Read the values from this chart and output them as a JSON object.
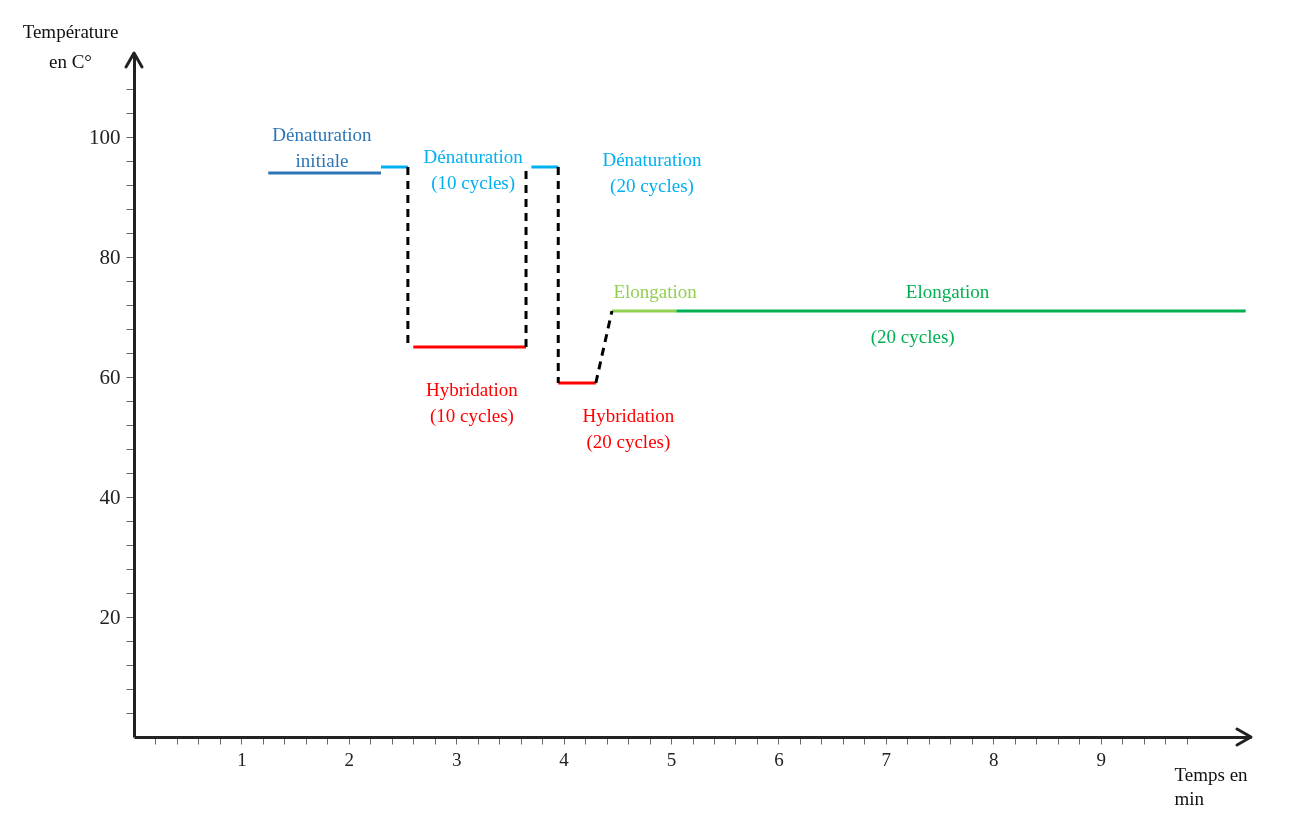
{
  "chart_data": {
    "type": "line",
    "xlabel": "Temps en\nmin",
    "ylabel": "Température\nen C°",
    "xlim": [
      0,
      10.4
    ],
    "ylim": [
      0,
      114
    ],
    "xticks": [
      {
        "value": 0.2,
        "label": null
      },
      {
        "value": 0.4,
        "label": null
      },
      {
        "value": 0.6,
        "label": null
      },
      {
        "value": 0.8,
        "label": null
      },
      1,
      {
        "value": 1.2,
        "label": null
      },
      {
        "value": 1.4,
        "label": null
      },
      {
        "value": 1.6,
        "label": null
      },
      {
        "value": 1.8,
        "label": null
      },
      2,
      {
        "value": 2.2,
        "label": null
      },
      {
        "value": 2.4,
        "label": null
      },
      {
        "value": 2.6,
        "label": null
      },
      {
        "value": 2.8,
        "label": null
      },
      3,
      {
        "value": 3.2,
        "label": null
      },
      {
        "value": 3.4,
        "label": null
      },
      {
        "value": 3.6,
        "label": null
      },
      {
        "value": 3.8,
        "label": null
      },
      4,
      {
        "value": 4.2,
        "label": null
      },
      {
        "value": 4.4,
        "label": null
      },
      {
        "value": 4.6,
        "label": null
      },
      {
        "value": 4.8,
        "label": null
      },
      5,
      {
        "value": 5.2,
        "label": null
      },
      {
        "value": 5.4,
        "label": null
      },
      {
        "value": 5.6,
        "label": null
      },
      {
        "value": 5.8,
        "label": null
      },
      6,
      {
        "value": 6.2,
        "label": null
      },
      {
        "value": 6.4,
        "label": null
      },
      {
        "value": 6.6,
        "label": null
      },
      {
        "value": 6.8,
        "label": null
      },
      7,
      {
        "value": 7.2,
        "label": null
      },
      {
        "value": 7.4,
        "label": null
      },
      {
        "value": 7.6,
        "label": null
      },
      {
        "value": 7.8,
        "label": null
      },
      8,
      {
        "value": 8.2,
        "label": null
      },
      {
        "value": 8.4,
        "label": null
      },
      {
        "value": 8.6,
        "label": null
      },
      {
        "value": 8.8,
        "label": null
      },
      9,
      {
        "value": 9.2,
        "label": null
      },
      {
        "value": 9.4,
        "label": null
      },
      {
        "value": 9.6,
        "label": null
      },
      {
        "value": 9.8,
        "label": null
      }
    ],
    "yticks": [
      {
        "value": 4,
        "label": null
      },
      {
        "value": 8,
        "label": null
      },
      {
        "value": 12,
        "label": null
      },
      {
        "value": 16,
        "label": null
      },
      20,
      {
        "value": 24,
        "label": null
      },
      {
        "value": 28,
        "label": null
      },
      {
        "value": 32,
        "label": null
      },
      {
        "value": 36,
        "label": null
      },
      40,
      {
        "value": 44,
        "label": null
      },
      {
        "value": 48,
        "label": null
      },
      {
        "value": 52,
        "label": null
      },
      {
        "value": 56,
        "label": null
      },
      60,
      {
        "value": 64,
        "label": null
      },
      {
        "value": 68,
        "label": null
      },
      {
        "value": 72,
        "label": null
      },
      {
        "value": 76,
        "label": null
      },
      80,
      {
        "value": 84,
        "label": null
      },
      {
        "value": 88,
        "label": null
      },
      {
        "value": 92,
        "label": null
      },
      {
        "value": 96,
        "label": null
      },
      100,
      {
        "value": 104,
        "label": null
      },
      {
        "value": 108,
        "label": null
      }
    ],
    "grid": false,
    "legend": false,
    "marker": "none",
    "series": [
      {
        "color": "#2e75b6",
        "x": [
          1.25,
          2.3
        ],
        "values": [
          94,
          94
        ]
      },
      {
        "color": "#00b0f0",
        "x": [
          2.3,
          2.55
        ],
        "values": [
          95,
          95
        ]
      },
      {
        "color": "#000000",
        "line_style": "dashed",
        "x": [
          2.55,
          2.55
        ],
        "values": [
          95,
          65
        ]
      },
      {
        "color": "#ff0000",
        "x": [
          2.6,
          3.65
        ],
        "values": [
          65,
          65
        ]
      },
      {
        "color": "#000000",
        "line_style": "dashed",
        "x": [
          3.65,
          3.65
        ],
        "values": [
          65,
          95
        ]
      },
      {
        "color": "#00b0f0",
        "x": [
          3.7,
          3.95
        ],
        "values": [
          95,
          95
        ]
      },
      {
        "color": "#000000",
        "line_style": "dashed",
        "x": [
          3.95,
          3.95
        ],
        "values": [
          95,
          59
        ]
      },
      {
        "color": "#ff0000",
        "x": [
          3.95,
          4.3
        ],
        "values": [
          59,
          59
        ]
      },
      {
        "color": "#000000",
        "line_style": "dashed",
        "x": [
          4.3,
          4.45
        ],
        "values": [
          59,
          71
        ]
      },
      {
        "color": "#92d050",
        "x": [
          4.45,
          5.05
        ],
        "values": [
          71,
          71
        ]
      },
      {
        "color": "#00b050",
        "x": [
          5.05,
          10.35
        ],
        "values": [
          71,
          71
        ]
      }
    ],
    "annotations": [
      {
        "text": "Dénaturation\ninitiale",
        "x": 1.75,
        "y": 94
      },
      {
        "text": "Dénaturation\n(10 cycles)",
        "x": 2.45,
        "y": 95
      },
      "Dénaturation\n(20 cycles)",
      {
        "text": "Hybridation\n(10 cycles)",
        "x": 3.1,
        "y": 65
      },
      {
        "text": "Hybridation\n(20 cycles)",
        "x": 4.1,
        "y": 59
      },
      {
        "text": "Elongation",
        "x": 4.75,
        "y": 71
      },
      {
        "text": "Elongation",
        "x": 7.5,
        "y": 71
      },
      {
        "text": "(20 cycles)",
        "x": 7.25,
        "y": 71
      }
    ]
  }
}
